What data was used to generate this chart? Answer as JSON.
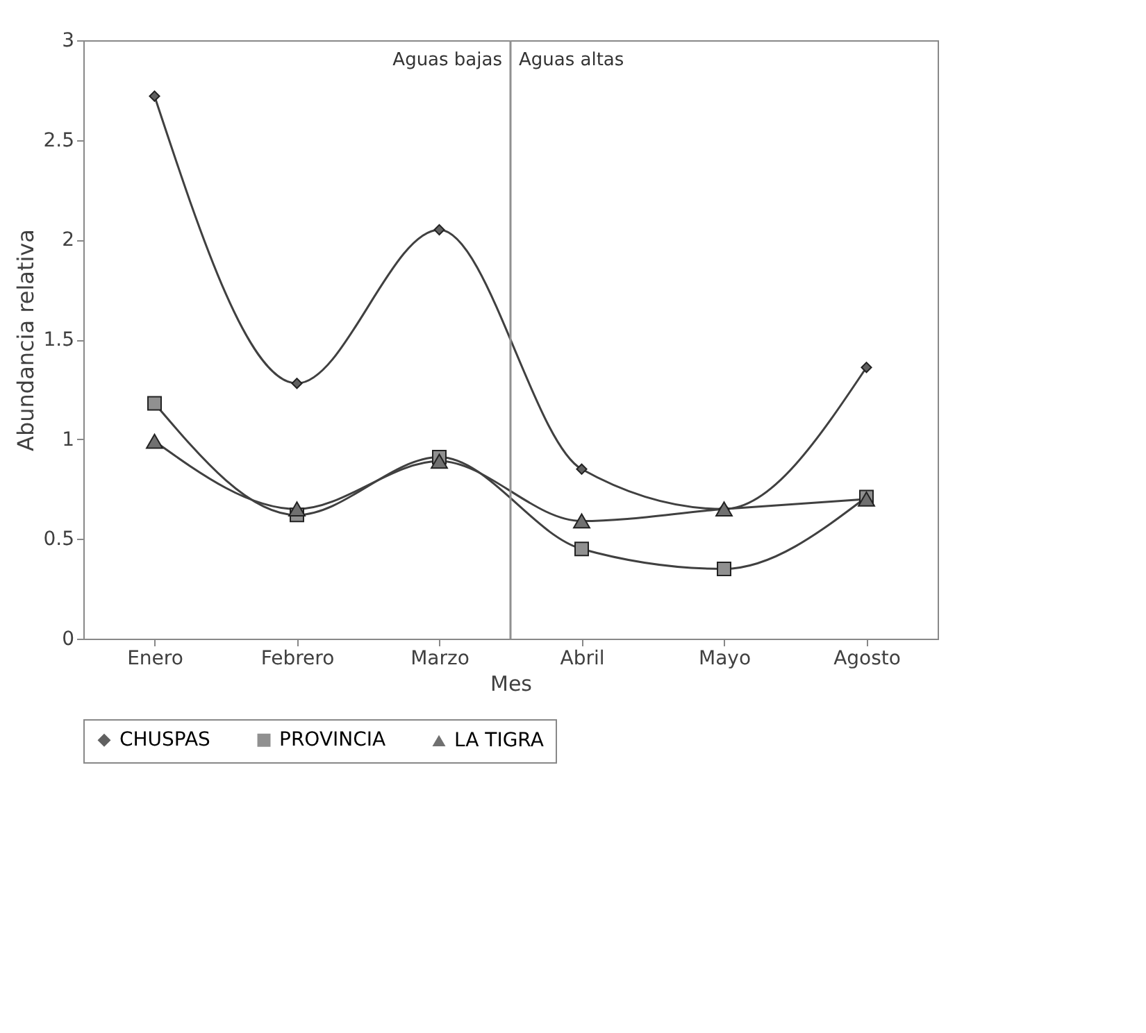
{
  "chart_data": {
    "type": "line",
    "xlabel": "Mes",
    "ylabel": "Abundancia relativa",
    "categories": [
      "Enero",
      "Febrero",
      "Marzo",
      "Abril",
      "Mayo",
      "Agosto"
    ],
    "series": [
      {
        "name": "CHUSPAS",
        "color": "#404040",
        "marker": "diamond",
        "values": [
          2.72,
          1.28,
          2.05,
          0.85,
          0.65,
          1.36
        ]
      },
      {
        "name": "PROVINCIA",
        "color": "#404040",
        "marker": "square",
        "values": [
          1.18,
          0.62,
          0.91,
          0.45,
          0.35,
          0.71
        ]
      },
      {
        "name": "LA TIGRA",
        "color": "#404040",
        "marker": "triangle",
        "values": [
          0.99,
          0.65,
          0.89,
          0.59,
          0.65,
          0.7
        ]
      }
    ],
    "ylim": [
      0,
      3
    ],
    "yticks": [
      0,
      0.5,
      1,
      1.5,
      2,
      2.5,
      3
    ],
    "annotations": [
      "Aguas bajas",
      "Aguas altas"
    ],
    "grid": false,
    "legend": "bottom",
    "line_style": "solid"
  }
}
